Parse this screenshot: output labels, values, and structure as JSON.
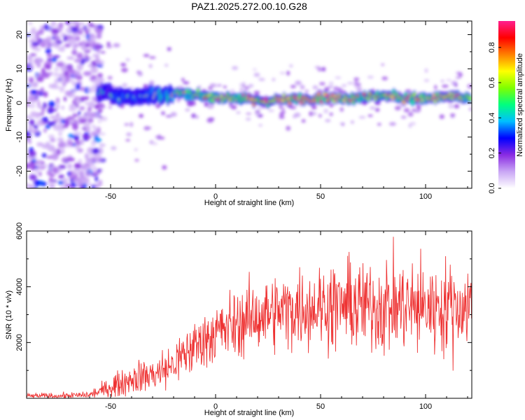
{
  "figure": {
    "title": "PAZ1.2025.272.00.10.G28"
  },
  "chart_data": [
    {
      "type": "heatmap",
      "xlabel": "Height of straight line (km)",
      "ylabel": "Frequency (Hz)",
      "xlim": [
        -90,
        122
      ],
      "ylim": [
        -25,
        24
      ],
      "xticks": [
        -50,
        0,
        50,
        100
      ],
      "yticks": [
        -20,
        -10,
        0,
        10,
        20
      ],
      "colorbar": {
        "label": "Normalized spectral amplitude",
        "range": [
          0,
          0.95
        ],
        "ticks": [
          "0.0",
          "0.2",
          "0.4",
          "0.6",
          "0.8"
        ],
        "colormap": [
          "#ffffff",
          "#c9a6f5",
          "#8a2be2",
          "#0000ff",
          "#00bfff",
          "#00ff7f",
          "#7fff00",
          "#ffff00",
          "#ff7f00",
          "#ff0000",
          "#ff1f8f"
        ]
      },
      "signal_track": {
        "x": [
          -55,
          -50,
          -45,
          -40,
          -35,
          -30,
          -25,
          -20,
          -15,
          -10,
          -5,
          0,
          10,
          20,
          30,
          40,
          50,
          60,
          70,
          80,
          90,
          100,
          110,
          120
        ],
        "y": [
          3,
          2.5,
          2,
          1.5,
          2,
          2.5,
          2,
          3,
          2.5,
          2,
          2,
          1.8,
          1.5,
          0.5,
          0.8,
          1.2,
          1.5,
          1.3,
          1.8,
          2.2,
          1.5,
          1.2,
          1.8,
          1.5
        ],
        "amplitude": [
          0.3,
          0.35,
          0.4,
          0.35,
          0.4,
          0.45,
          0.5,
          0.55,
          0.6,
          0.6,
          0.65,
          0.7,
          0.75,
          0.85,
          0.8,
          0.85,
          0.8,
          0.75,
          0.65,
          0.7,
          0.75,
          0.7,
          0.8,
          0.65
        ]
      },
      "noise_region_x": [
        -90,
        -60
      ]
    },
    {
      "type": "line",
      "xlabel": "Height of straight line (km)",
      "ylabel": "SNR (10 * v/v)",
      "xlim": [
        -90,
        122
      ],
      "ylim": [
        0,
        6000
      ],
      "xticks": [
        -50,
        0,
        50,
        100
      ],
      "yticks": [
        2000,
        4000,
        6000
      ],
      "series": [
        {
          "name": "SNR",
          "color": "#ee3333",
          "envelope_x": [
            -90,
            -70,
            -60,
            -55,
            -50,
            -45,
            -40,
            -35,
            -30,
            -25,
            -20,
            -15,
            -10,
            -5,
            0,
            10,
            20,
            30,
            40,
            50,
            60,
            70,
            80,
            90,
            100,
            110,
            122
          ],
          "envelope_mean": [
            80,
            90,
            120,
            250,
            400,
            550,
            700,
            800,
            850,
            1000,
            1200,
            1550,
            1850,
            2150,
            2350,
            2650,
            2950,
            3100,
            3250,
            3300,
            3350,
            3300,
            3350,
            3300,
            3250,
            3300,
            3250
          ],
          "envelope_spread": [
            70,
            80,
            100,
            150,
            250,
            300,
            350,
            400,
            450,
            500,
            550,
            600,
            650,
            700,
            750,
            800,
            850,
            900,
            950,
            1000,
            1050,
            1100,
            1150,
            1150,
            1100,
            1100,
            1100
          ]
        }
      ]
    }
  ]
}
